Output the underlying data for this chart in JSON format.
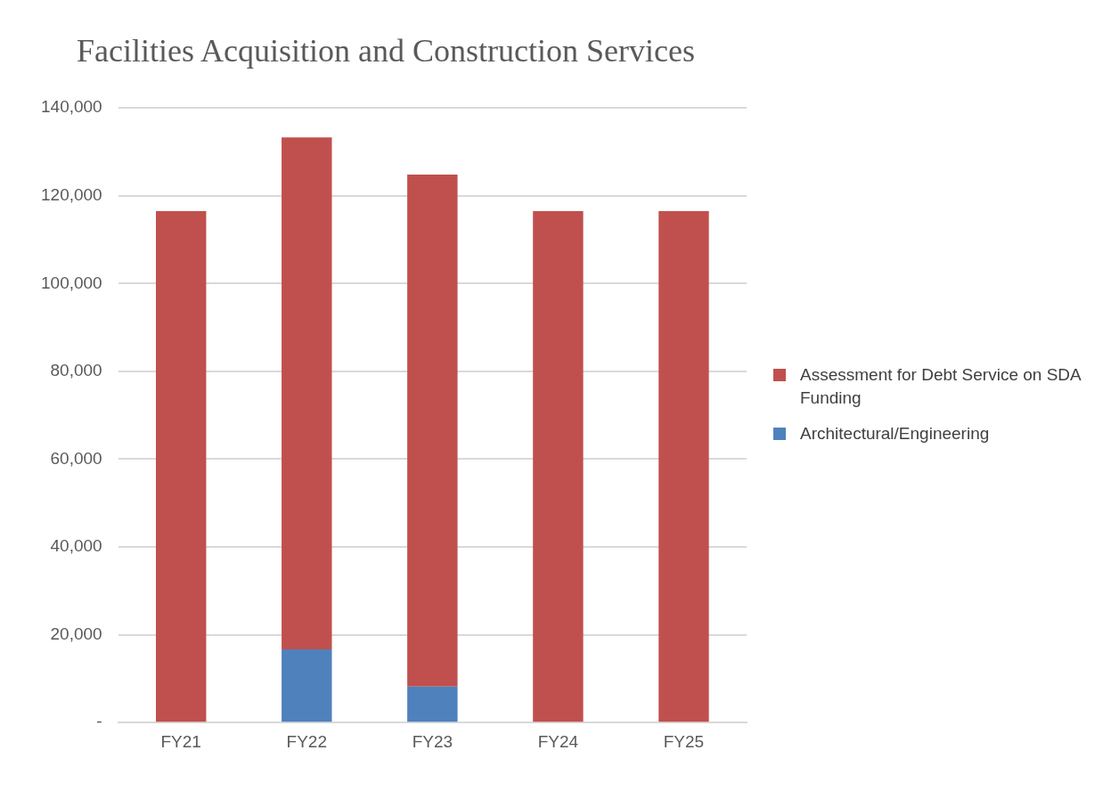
{
  "chart_data": {
    "type": "bar",
    "title": "Facilities Acquisition and Construction Services",
    "categories": [
      "FY21",
      "FY22",
      "FY23",
      "FY24",
      "FY25"
    ],
    "stacked": true,
    "series": [
      {
        "name": "Architectural/Engineering",
        "color": "#4f81bd",
        "values": [
          0,
          16700,
          8200,
          0,
          0
        ]
      },
      {
        "name": "Assessment for Debt Service on SDA Funding",
        "color": "#c0504d",
        "values": [
          116500,
          116600,
          116600,
          116500,
          116500
        ]
      }
    ],
    "ylim": [
      0,
      140000
    ],
    "yticks": [
      {
        "value": 0,
        "label": "-"
      },
      {
        "value": 20000,
        "label": "20,000"
      },
      {
        "value": 40000,
        "label": "40,000"
      },
      {
        "value": 60000,
        "label": "60,000"
      },
      {
        "value": 80000,
        "label": "80,000"
      },
      {
        "value": 100000,
        "label": "100,000"
      },
      {
        "value": 120000,
        "label": "120,000"
      },
      {
        "value": 140000,
        "label": "140,000"
      }
    ],
    "grid": "y",
    "legend": "right"
  }
}
